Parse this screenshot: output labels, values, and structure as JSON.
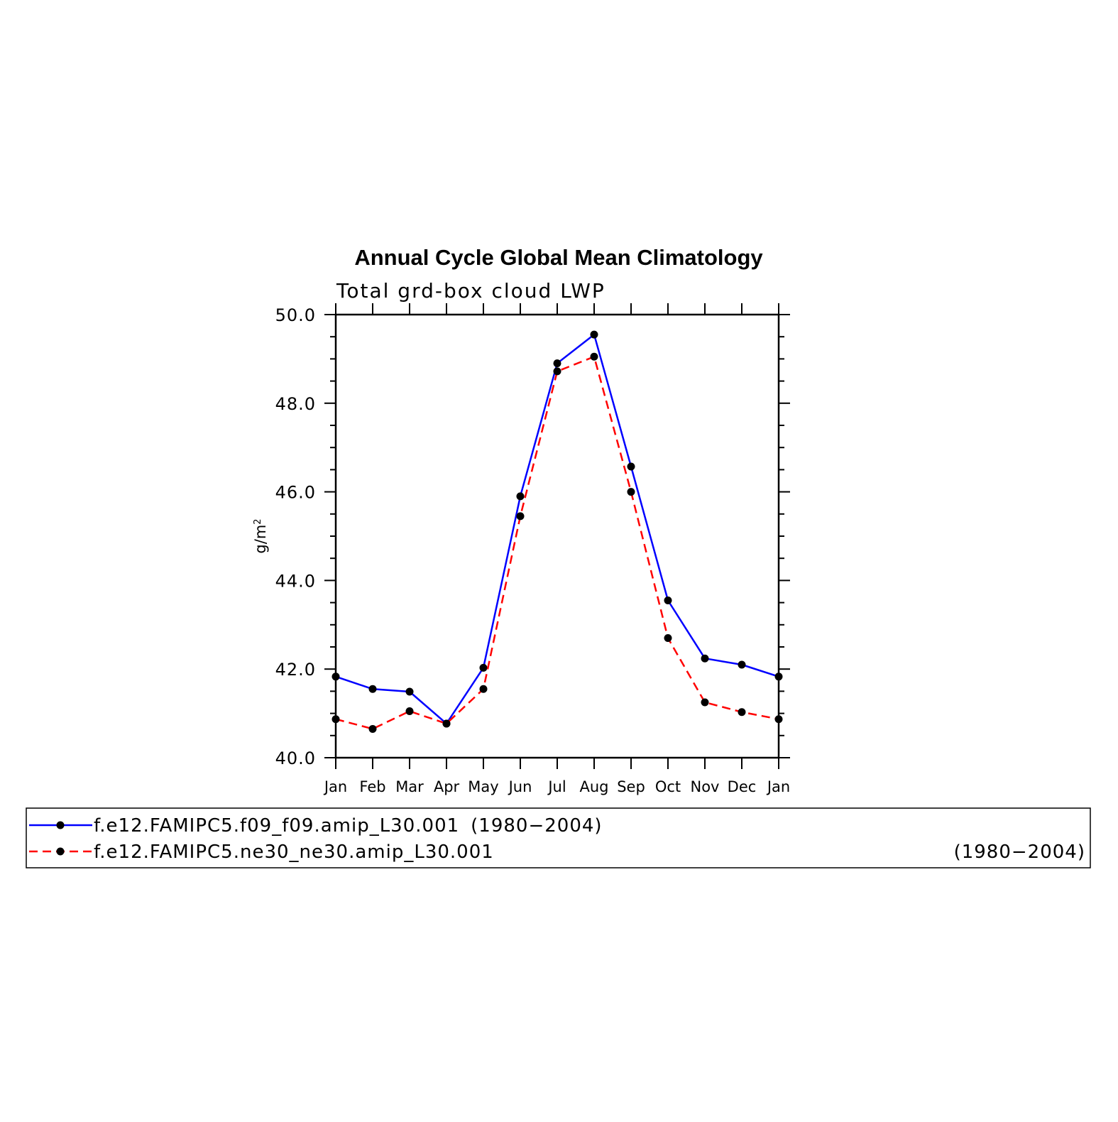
{
  "chart_data": {
    "type": "line",
    "title": "Annual Cycle Global Mean Climatology",
    "subtitle": "Total grd-box cloud LWP",
    "ylabel": "g/m",
    "ylabel_sup": "2",
    "ylim": [
      40.0,
      50.0
    ],
    "yticks": [
      "40.0",
      "42.0",
      "44.0",
      "46.0",
      "48.0",
      "50.0"
    ],
    "categories": [
      "Jan",
      "Feb",
      "Mar",
      "Apr",
      "May",
      "Jun",
      "Jul",
      "Aug",
      "Sep",
      "Oct",
      "Nov",
      "Dec",
      "Jan"
    ],
    "series": [
      {
        "name": "f.e12.FAMIPC5.f09_f09.amip_L30.001",
        "period": "(1980−2004)",
        "color": "#0000ff",
        "dash": "solid",
        "values": [
          41.83,
          41.55,
          41.49,
          40.77,
          42.03,
          45.9,
          48.9,
          49.55,
          46.57,
          43.55,
          42.24,
          42.1,
          41.83
        ]
      },
      {
        "name": "f.e12.FAMIPC5.ne30_ne30.amip_L30.001",
        "period": "(1980−2004)",
        "color": "#ff0000",
        "dash": "dashed",
        "values": [
          40.87,
          40.65,
          41.05,
          40.77,
          41.55,
          45.45,
          48.72,
          49.05,
          46.0,
          42.7,
          41.25,
          41.03,
          40.87
        ]
      }
    ]
  }
}
